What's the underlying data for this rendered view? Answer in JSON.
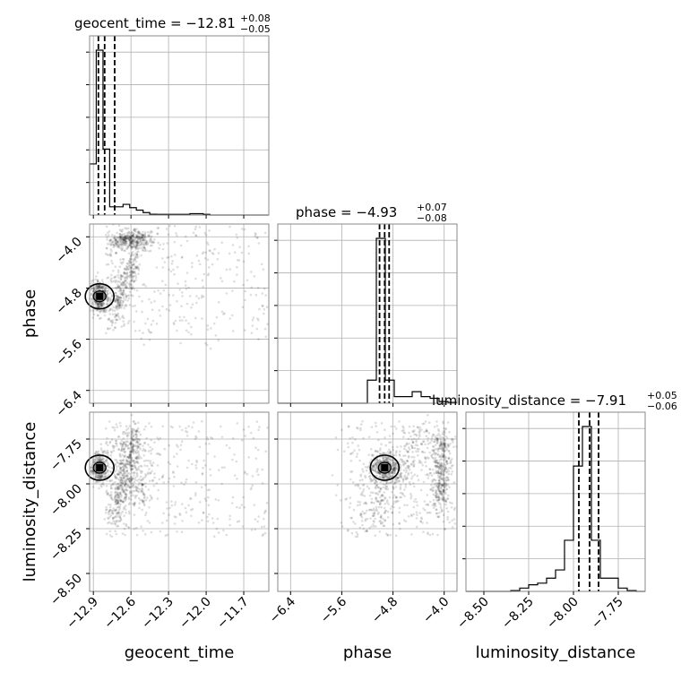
{
  "chart_data": {
    "type": "corner",
    "parameters": [
      "geocent_time",
      "phase",
      "luminosity_distance"
    ],
    "titles": {
      "geocent_time": {
        "prefix": "geocent_time = ",
        "median": "−12.81",
        "plus": "+0.08",
        "minus": "−0.05"
      },
      "phase": {
        "prefix": "phase = ",
        "median": "−4.93",
        "plus": "+0.07",
        "minus": "−0.08"
      },
      "luminosity_distance": {
        "prefix": "luminosity_distance = ",
        "median": "−7.91",
        "plus": "+0.05",
        "minus": "−0.06"
      }
    },
    "axis_labels": {
      "phase_y": "phase",
      "luminosity_distance_y": "luminosity_distance",
      "geocent_time_x": "geocent_time",
      "phase_x": "phase",
      "luminosity_distance_x": "luminosity_distance"
    },
    "ranges": {
      "geocent_time": [
        -12.93,
        -11.5
      ],
      "phase": [
        -6.6,
        -3.8
      ],
      "luminosity_distance": [
        -8.6,
        -7.6
      ]
    },
    "ticks": {
      "geocent_time": [
        {
          "v": -12.9,
          "t": "−12.9"
        },
        {
          "v": -12.6,
          "t": "−12.6"
        },
        {
          "v": -12.3,
          "t": "−12.3"
        },
        {
          "v": -12.0,
          "t": "−12.0"
        },
        {
          "v": -11.7,
          "t": "−11.7"
        }
      ],
      "phase": [
        {
          "v": -6.4,
          "t": "−6.4"
        },
        {
          "v": -5.6,
          "t": "−5.6"
        },
        {
          "v": -4.8,
          "t": "−4.8"
        },
        {
          "v": -4.0,
          "t": "−4.0"
        }
      ],
      "luminosity_distance": [
        {
          "v": -8.5,
          "t": "−8.50"
        },
        {
          "v": -8.25,
          "t": "−8.25"
        },
        {
          "v": -8.0,
          "t": "−8.00"
        },
        {
          "v": -7.75,
          "t": "−7.75"
        }
      ]
    },
    "quantiles": {
      "geocent_time": [
        -12.86,
        -12.81,
        -12.73
      ],
      "phase": [
        -5.01,
        -4.93,
        -4.86
      ],
      "luminosity_distance": [
        -7.97,
        -7.91,
        -7.86
      ]
    },
    "histograms": {
      "geocent_time": {
        "edges": [
          -12.93,
          -12.877,
          -12.823,
          -12.77,
          -12.717,
          -12.663,
          -12.61,
          -12.557,
          -12.503,
          -12.45,
          -12.397,
          -12.343,
          -12.29,
          -12.237,
          -12.183,
          -12.13,
          -12.077,
          -12.023,
          -11.97,
          -11.917,
          -11.863,
          -11.81,
          -11.757,
          -11.703,
          -11.65,
          -11.597,
          -11.543,
          -11.5
        ],
        "counts": [
          0.31,
          1.0,
          0.4,
          0.05,
          0.05,
          0.065,
          0.045,
          0.03,
          0.015,
          0.005,
          0.004,
          0.004,
          0.004,
          0.004,
          0.004,
          0.008,
          0.008,
          0.004,
          0,
          0,
          0,
          0,
          0,
          0,
          0,
          0,
          0
        ]
      },
      "phase": {
        "edges": [
          -6.6,
          -6.46,
          -6.32,
          -6.18,
          -6.04,
          -5.9,
          -5.76,
          -5.62,
          -5.48,
          -5.34,
          -5.2,
          -5.06,
          -4.92,
          -4.78,
          -4.64,
          -4.5,
          -4.36,
          -4.22,
          -4.08,
          -3.94,
          -3.8
        ],
        "counts": [
          0,
          0,
          0,
          0,
          0,
          0,
          0,
          0,
          0,
          0,
          0.14,
          1.0,
          0.14,
          0.04,
          0.04,
          0.07,
          0.04,
          0.03,
          0.01,
          0.005
        ]
      },
      "luminosity_distance": {
        "edges": [
          -8.6,
          -8.55,
          -8.5,
          -8.45,
          -8.4,
          -8.35,
          -8.3,
          -8.25,
          -8.2,
          -8.15,
          -8.1,
          -8.05,
          -8.0,
          -7.95,
          -7.9,
          -7.85,
          -7.8,
          -7.75,
          -7.7,
          -7.65,
          -7.6
        ],
        "counts": [
          0,
          0,
          0,
          0,
          0,
          0.005,
          0.02,
          0.04,
          0.05,
          0.08,
          0.13,
          0.31,
          0.76,
          1.0,
          0.31,
          0.08,
          0.08,
          0.02,
          0.005,
          0
        ]
      }
    },
    "peaks": {
      "geocent_time": -12.85,
      "phase": -4.93,
      "luminosity_distance": -7.91
    },
    "colors": {
      "points": "#000000",
      "grid": "#b0b0b0",
      "frame": "#8a8a8a",
      "line": "#000000"
    }
  }
}
